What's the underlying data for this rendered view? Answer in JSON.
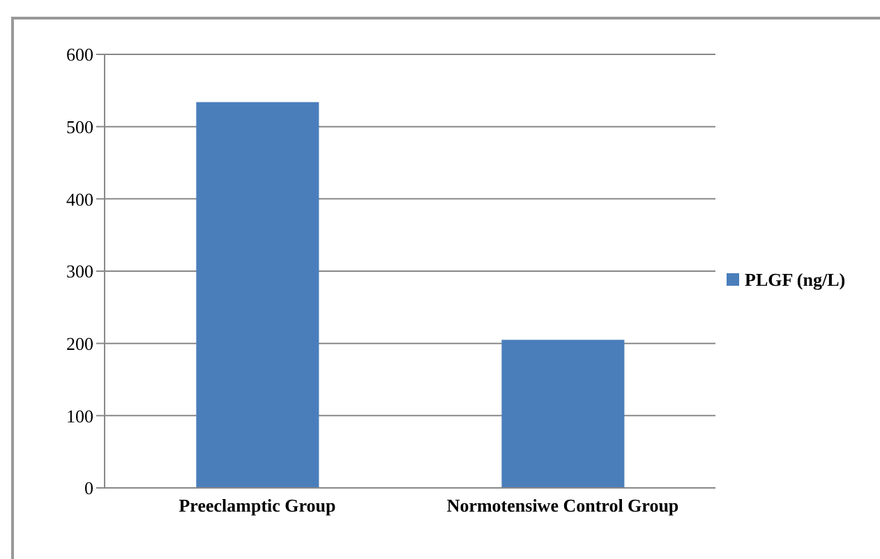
{
  "chart_data": {
    "type": "bar",
    "categories": [
      "Preeclamptic Group",
      "Normotensiwe Control Group"
    ],
    "series": [
      {
        "name": "PLGF (ng/L)",
        "color": "#4a7ebb",
        "values": [
          534,
          205
        ]
      }
    ],
    "ylim": [
      0,
      600
    ],
    "yticks": [
      0,
      100,
      200,
      300,
      400,
      500,
      600
    ],
    "grid": "y",
    "legend": "right"
  }
}
